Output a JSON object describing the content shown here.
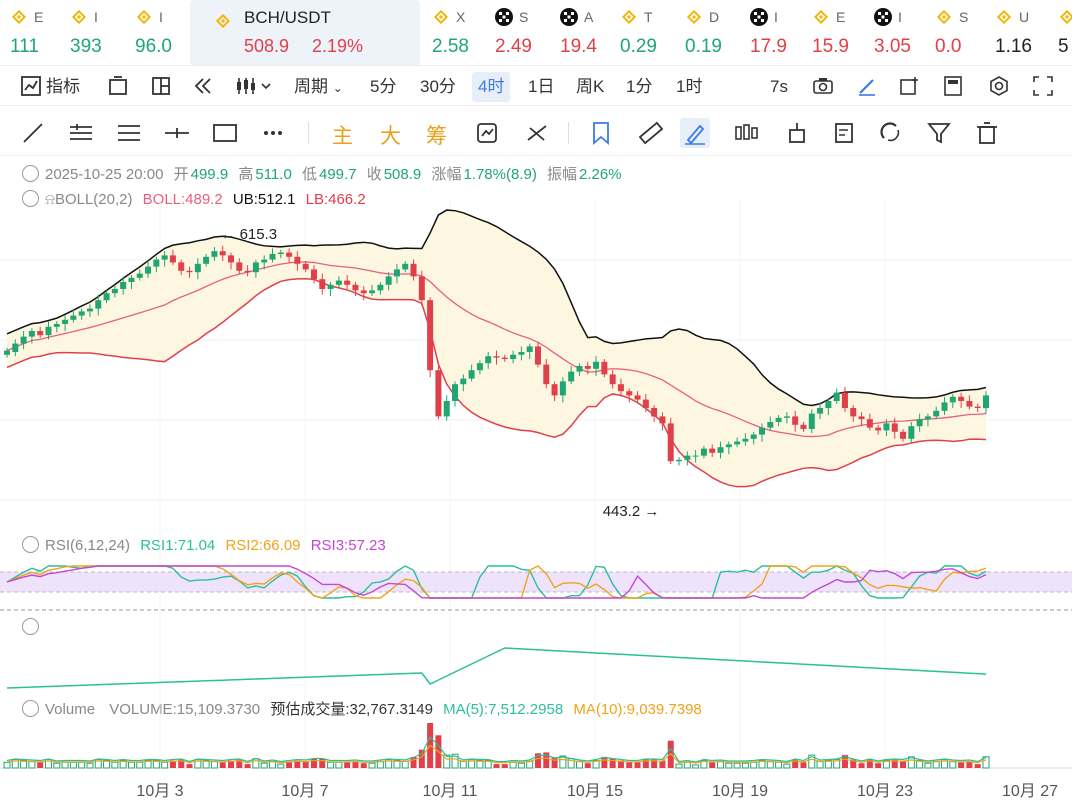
{
  "colors": {
    "up": "#1fa672",
    "down": "#e0404a",
    "accent": "#3d7be6",
    "boll": "#e8607e",
    "ub": "#111111",
    "lb": "#e0404a",
    "rsi1": "#2bbf9a",
    "rsi2": "#f0a31a",
    "rsi3": "#c446d6",
    "ma5": "#2bbf9a",
    "ma10": "#f0a31a"
  },
  "ticker": [
    {
      "icon": "binance-icon",
      "name": "E",
      "price": "111",
      "trend": "up"
    },
    {
      "icon": "binance-icon",
      "name": "I",
      "price": "393",
      "trend": "up"
    },
    {
      "icon": "binance-icon",
      "name": "I",
      "price": "96.0",
      "trend": "up"
    },
    {
      "icon": "binance-icon",
      "name": "BCH/USDT",
      "price": "508.9",
      "change": "2.19%",
      "trend": "down",
      "active": true
    },
    {
      "icon": "binance-icon",
      "name": "X",
      "price": "2.58",
      "trend": "up"
    },
    {
      "icon": "okx-icon",
      "name": "S",
      "price": "2.49",
      "trend": "down"
    },
    {
      "icon": "okx-icon",
      "name": "A",
      "price": "19.4",
      "trend": "down"
    },
    {
      "icon": "binance-icon",
      "name": "T",
      "price": "0.29",
      "trend": "up"
    },
    {
      "icon": "binance-icon",
      "name": "D",
      "price": "0.19",
      "trend": "up"
    },
    {
      "icon": "okx-icon",
      "name": "I",
      "price": "17.9",
      "trend": "down"
    },
    {
      "icon": "binance-icon",
      "name": "E",
      "price": "15.9",
      "trend": "down"
    },
    {
      "icon": "okx-icon",
      "name": "I",
      "price": "3.05",
      "trend": "down"
    },
    {
      "icon": "binance-icon",
      "name": "S",
      "price": "0.0",
      "trend": "down"
    },
    {
      "icon": "binance-icon",
      "name": "U",
      "price": "1.16",
      "trend": "black"
    },
    {
      "icon": "binance-icon",
      "name": "",
      "price": "5",
      "trend": "black"
    }
  ],
  "toolbar": {
    "indicators": "指标",
    "period": "周期",
    "intervals": [
      "5分",
      "30分",
      "4时",
      "1日",
      "周K",
      "1分",
      "1时"
    ],
    "selected_interval": "4时",
    "refresh": "7s"
  },
  "drawing_tools": {
    "chars": [
      "主",
      "大",
      "筹"
    ]
  },
  "ohlc": {
    "date": "2025-10-25 20:00",
    "open_label": "开",
    "open": "499.9",
    "high_label": "高",
    "high": "511.0",
    "low_label": "低",
    "low": "499.7",
    "close_label": "收",
    "close": "508.9",
    "change_label": "涨幅",
    "change": "1.78%(8.9)",
    "amp_label": "振幅",
    "amp": "2.26%"
  },
  "boll": {
    "name": "BOLL(20,2)",
    "boll": "BOLL:489.2",
    "ub": "UB:512.1",
    "lb": "LB:466.2"
  },
  "rsi": {
    "name": "RSI(6,12,24)",
    "rsi1": "RSI1:71.04",
    "rsi2": "RSI2:66.09",
    "rsi3": "RSI3:57.23"
  },
  "volume": {
    "name": "Volume",
    "vol": "VOLUME:15,109.3730",
    "est": "预估成交量:32,767.3149",
    "ma5": "MA(5):7,512.2958",
    "ma10": "MA(10):9,039.7398"
  },
  "annotations": {
    "high": "615.3",
    "low": "443.2"
  },
  "chart_data": {
    "type": "candlestick",
    "x_ticks": [
      "10月 3",
      "10月 7",
      "10月 11",
      "10月 15",
      "10月 19",
      "10月 23",
      "10月 27"
    ],
    "price_range": [
      420,
      640
    ],
    "closes": [
      541,
      546,
      551,
      555,
      552,
      558,
      560,
      563,
      566,
      569,
      571,
      577,
      582,
      585,
      590,
      593,
      596,
      601,
      606,
      609,
      604,
      598,
      597,
      603,
      608,
      612,
      609,
      604,
      598,
      597,
      604,
      606,
      610,
      611,
      608,
      603,
      599,
      592,
      585,
      588,
      591,
      588,
      584,
      582,
      584,
      588,
      594,
      599,
      603,
      594,
      577,
      527,
      494,
      505,
      517,
      521,
      527,
      532,
      537,
      536,
      535,
      538,
      540,
      544,
      531,
      517,
      509,
      519,
      526,
      530,
      528,
      533,
      524,
      517,
      512,
      509,
      506,
      500,
      494,
      489,
      462,
      463,
      466,
      466,
      471,
      468,
      472,
      474,
      476,
      478,
      481,
      486,
      490,
      493,
      494,
      488,
      485,
      496,
      500,
      505,
      511,
      500,
      494,
      492,
      486,
      484,
      489,
      483,
      478,
      487,
      492,
      494,
      498,
      504,
      508,
      505,
      501,
      500,
      509
    ],
    "opens": [
      538,
      540,
      546,
      551,
      555,
      552,
      558,
      560,
      563,
      566,
      569,
      571,
      577,
      582,
      585,
      590,
      593,
      596,
      601,
      606,
      609,
      604,
      598,
      597,
      603,
      608,
      612,
      609,
      604,
      598,
      597,
      604,
      606,
      610,
      611,
      608,
      603,
      599,
      592,
      585,
      588,
      591,
      588,
      584,
      582,
      584,
      588,
      594,
      599,
      603,
      594,
      577,
      527,
      494,
      505,
      517,
      521,
      527,
      532,
      537,
      536,
      535,
      538,
      540,
      544,
      531,
      517,
      509,
      519,
      526,
      530,
      528,
      533,
      524,
      517,
      512,
      509,
      506,
      500,
      494,
      489,
      462,
      463,
      466,
      466,
      471,
      468,
      472,
      474,
      476,
      478,
      481,
      486,
      490,
      493,
      494,
      488,
      485,
      496,
      500,
      505,
      511,
      500,
      494,
      492,
      486,
      484,
      489,
      483,
      478,
      487,
      492,
      494,
      498,
      504,
      508,
      505,
      501,
      499.9
    ]
  }
}
